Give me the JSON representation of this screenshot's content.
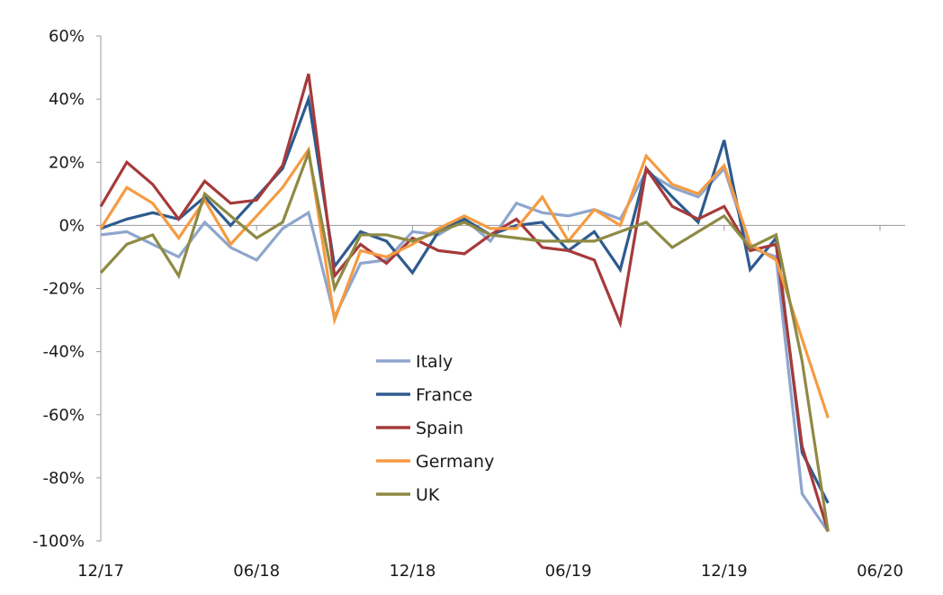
{
  "chart_data": {
    "type": "line",
    "x_ticks": [
      "12/17",
      "06/18",
      "12/18",
      "06/19",
      "12/19",
      "06/20"
    ],
    "x_start": "2017-12",
    "x_end": "2020-06",
    "y_ticks": [
      "60%",
      "40%",
      "20%",
      "0%",
      "-20%",
      "-40%",
      "-60%",
      "-80%",
      "-100%"
    ],
    "ylim": [
      -100,
      60
    ],
    "legend_position": "center-left",
    "grid": false,
    "series": [
      {
        "name": "Italy",
        "color": "#8EA6CE",
        "values": [
          -3,
          -2,
          -6,
          -10,
          1,
          -7,
          -11,
          -1,
          4,
          -29,
          -12,
          -11,
          -2,
          -3,
          2,
          -5,
          7,
          4,
          3,
          5,
          2,
          17,
          12,
          9,
          18,
          -7,
          -10,
          -85,
          -97
        ]
      },
      {
        "name": "France",
        "color": "#2E5B8F",
        "values": [
          -1,
          2,
          4,
          2,
          9,
          0,
          9,
          18,
          40,
          -13,
          -2,
          -5,
          -15,
          -2,
          2,
          -3,
          0,
          1,
          -8,
          -2,
          -14,
          18,
          9,
          1,
          27,
          -14,
          -4,
          -72,
          -88
        ]
      },
      {
        "name": "Spain",
        "color": "#A63A3A",
        "values": [
          6,
          20,
          13,
          2,
          14,
          7,
          8,
          19,
          48,
          -16,
          -6,
          -12,
          -4,
          -8,
          -9,
          -3,
          2,
          -7,
          -8,
          -11,
          -31,
          18,
          6,
          2,
          6,
          -8,
          -6,
          -70,
          -97
        ]
      },
      {
        "name": "Germany",
        "color": "#F59B42",
        "values": [
          -1,
          12,
          7,
          -4,
          8,
          -6,
          3,
          12,
          24,
          -30,
          -8,
          -10,
          -6,
          -1,
          3,
          -1,
          -1,
          9,
          -5,
          5,
          0,
          22,
          13,
          10,
          19,
          -6,
          -11,
          -36,
          -61
        ]
      },
      {
        "name": "UK",
        "color": "#8E8A44",
        "values": [
          -15,
          -6,
          -3,
          -16,
          10,
          3,
          -4,
          1,
          23,
          -20,
          -3,
          -3,
          -5,
          -2,
          1,
          -3,
          -4,
          -5,
          -5,
          -5,
          -2,
          1,
          -7,
          -2,
          3,
          -7,
          -3,
          -43,
          -97
        ]
      }
    ]
  }
}
